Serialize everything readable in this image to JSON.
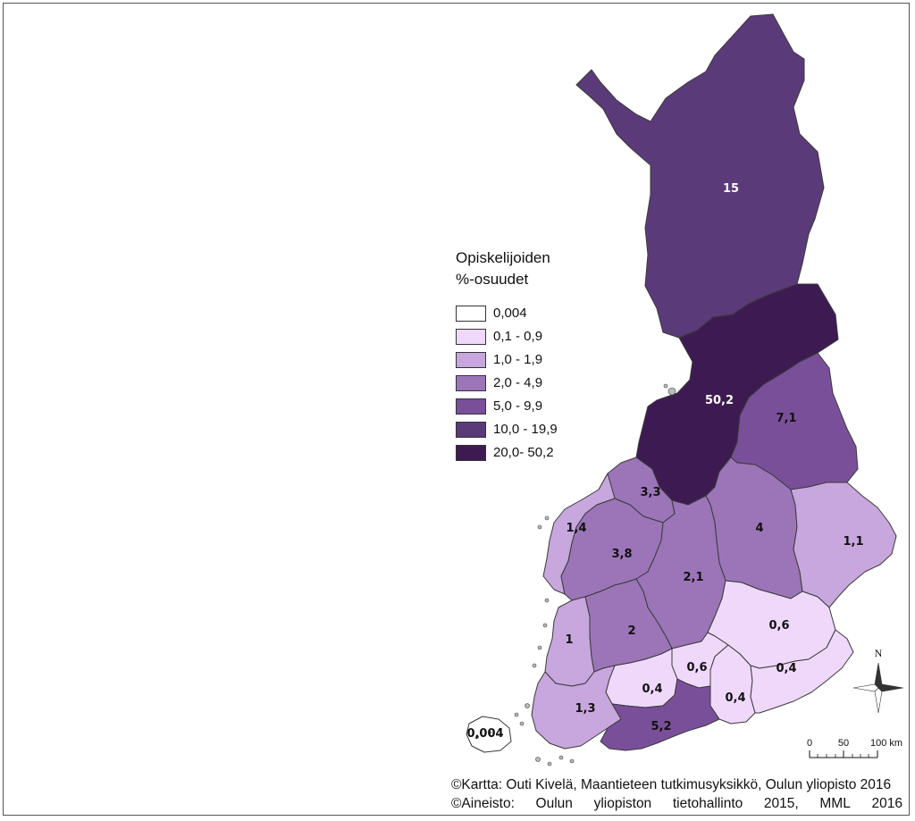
{
  "legend": {
    "title_line1": "Opiskelijoiden",
    "title_line2": "%-osuudet",
    "classes": [
      {
        "label": "0,004",
        "color": "#ffffff"
      },
      {
        "label": "0,1 - 0,9",
        "color": "#f0d8fb"
      },
      {
        "label": "1,0 - 1,9",
        "color": "#c7a7dd"
      },
      {
        "label": "2,0 - 4,9",
        "color": "#9b75b8"
      },
      {
        "label": "5,0 - 9,9",
        "color": "#7a4f9a"
      },
      {
        "label": "10,0 - 19,9",
        "color": "#5b3a79"
      },
      {
        "label": "20,0- 50,2",
        "color": "#3d1b52"
      }
    ]
  },
  "regions": [
    {
      "label": "15",
      "value": 15,
      "class": 5
    },
    {
      "label": "50,2",
      "value": 50.2,
      "class": 6
    },
    {
      "label": "7,1",
      "value": 7.1,
      "class": 4
    },
    {
      "label": "3,3",
      "value": 3.3,
      "class": 3
    },
    {
      "label": "1,4",
      "value": 1.4,
      "class": 2
    },
    {
      "label": "3,8",
      "value": 3.8,
      "class": 3
    },
    {
      "label": "4",
      "value": 4,
      "class": 3
    },
    {
      "label": "1,1",
      "value": 1.1,
      "class": 2
    },
    {
      "label": "2,1",
      "value": 2.1,
      "class": 3
    },
    {
      "label": "0,6",
      "value": 0.6,
      "class": 1
    },
    {
      "label": "1",
      "value": 1,
      "class": 2
    },
    {
      "label": "2",
      "value": 2,
      "class": 3
    },
    {
      "label": "0,6",
      "value": 0.6,
      "class": 1
    },
    {
      "label": "0,4",
      "value": 0.4,
      "class": 1
    },
    {
      "label": "0,4",
      "value": 0.4,
      "class": 1
    },
    {
      "label": "0,4",
      "value": 0.4,
      "class": 1
    },
    {
      "label": "1,3",
      "value": 1.3,
      "class": 2
    },
    {
      "label": "5,2",
      "value": 5.2,
      "class": 4
    },
    {
      "label": "0,004",
      "value": 0.004,
      "class": 0
    }
  ],
  "north_arrow": {
    "letter": "N"
  },
  "scale_bar": {
    "ticks": [
      "0",
      "50",
      "100 km"
    ]
  },
  "credits": {
    "line1": "©Kartta: Outi Kivelä, Maantieteen tutkimusyksikkö, Oulun yliopisto 2016",
    "line2_parts": [
      "©Aineisto:",
      "Oulun",
      "yliopiston",
      "tietohallinto",
      "2015,",
      "MML",
      "2016"
    ]
  }
}
